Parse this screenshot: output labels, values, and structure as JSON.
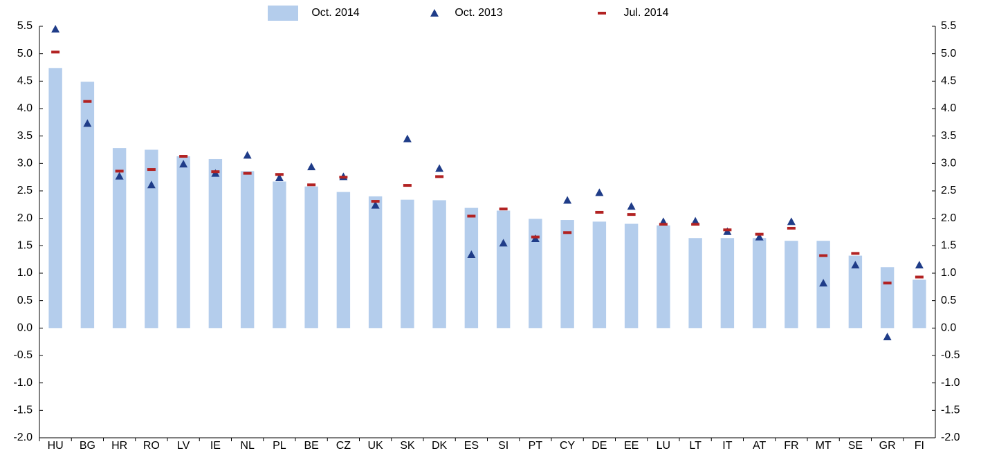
{
  "chart_data": {
    "type": "bar",
    "categories": [
      "HU",
      "BG",
      "HR",
      "RO",
      "LV",
      "IE",
      "NL",
      "PL",
      "BE",
      "CZ",
      "UK",
      "SK",
      "DK",
      "ES",
      "SI",
      "PT",
      "CY",
      "DE",
      "EE",
      "LU",
      "LT",
      "IT",
      "AT",
      "FR",
      "MT",
      "SE",
      "GR",
      "FI"
    ],
    "series": [
      {
        "name": "Oct. 2014",
        "marker": "bar",
        "color": "#b4cdec",
        "values": [
          4.74,
          4.49,
          3.28,
          3.25,
          3.13,
          3.08,
          2.86,
          2.67,
          2.58,
          2.48,
          2.4,
          2.34,
          2.33,
          2.19,
          2.14,
          1.99,
          1.97,
          1.94,
          1.9,
          1.87,
          1.64,
          1.64,
          1.64,
          1.59,
          1.59,
          1.32,
          1.11,
          0.88
        ]
      },
      {
        "name": "Oct. 2013",
        "marker": "triangle",
        "color": "#1f3c88",
        "values": [
          5.45,
          3.73,
          2.77,
          2.61,
          2.99,
          2.82,
          3.15,
          2.74,
          2.94,
          2.76,
          2.24,
          3.45,
          2.91,
          1.34,
          1.55,
          1.63,
          2.33,
          2.47,
          2.22,
          1.94,
          1.95,
          1.76,
          1.66,
          1.94,
          0.82,
          1.15,
          -0.16,
          1.15
        ]
      },
      {
        "name": "Jul. 2014",
        "marker": "dash",
        "color": "#b22222",
        "values": [
          5.03,
          4.13,
          2.86,
          2.89,
          3.13,
          2.85,
          2.82,
          2.8,
          2.61,
          2.75,
          2.31,
          2.6,
          2.76,
          2.04,
          2.17,
          1.66,
          1.74,
          2.11,
          2.07,
          1.89,
          1.89,
          1.79,
          1.71,
          1.82,
          1.32,
          1.36,
          0.82,
          0.93
        ]
      }
    ],
    "ylim": [
      -2,
      5.5
    ],
    "yticks": [
      5.5,
      {
        "value": 5,
        "label": "5.0"
      },
      4.5,
      {
        "value": 4,
        "label": "4.0"
      },
      3.5,
      {
        "value": 3,
        "label": "3.0"
      },
      2.5,
      {
        "value": 2,
        "label": "2.0"
      },
      1.5,
      {
        "value": 1,
        "label": "1.0"
      },
      0.5,
      {
        "value": 0,
        "label": "0.0"
      },
      -0.5,
      {
        "value": -1,
        "label": "-1.0"
      },
      -1.5,
      {
        "value": -2,
        "label": "-2.0"
      }
    ],
    "y2lim": [
      -2,
      5.5
    ],
    "y2ticks": [
      5.5,
      {
        "value": 5,
        "label": "5.0"
      },
      4.5,
      {
        "value": 4,
        "label": "4.0"
      },
      3.5,
      {
        "value": 3,
        "label": "3.0"
      },
      2.5,
      {
        "value": 2,
        "label": "2.0"
      },
      1.5,
      {
        "value": 1,
        "label": "1.0"
      },
      0.5,
      {
        "value": 0,
        "label": "0.0"
      },
      -0.5,
      {
        "value": -1,
        "label": "-1.0"
      },
      -1.5,
      {
        "value": -2,
        "label": "-2.0"
      }
    ],
    "legend": "top"
  }
}
